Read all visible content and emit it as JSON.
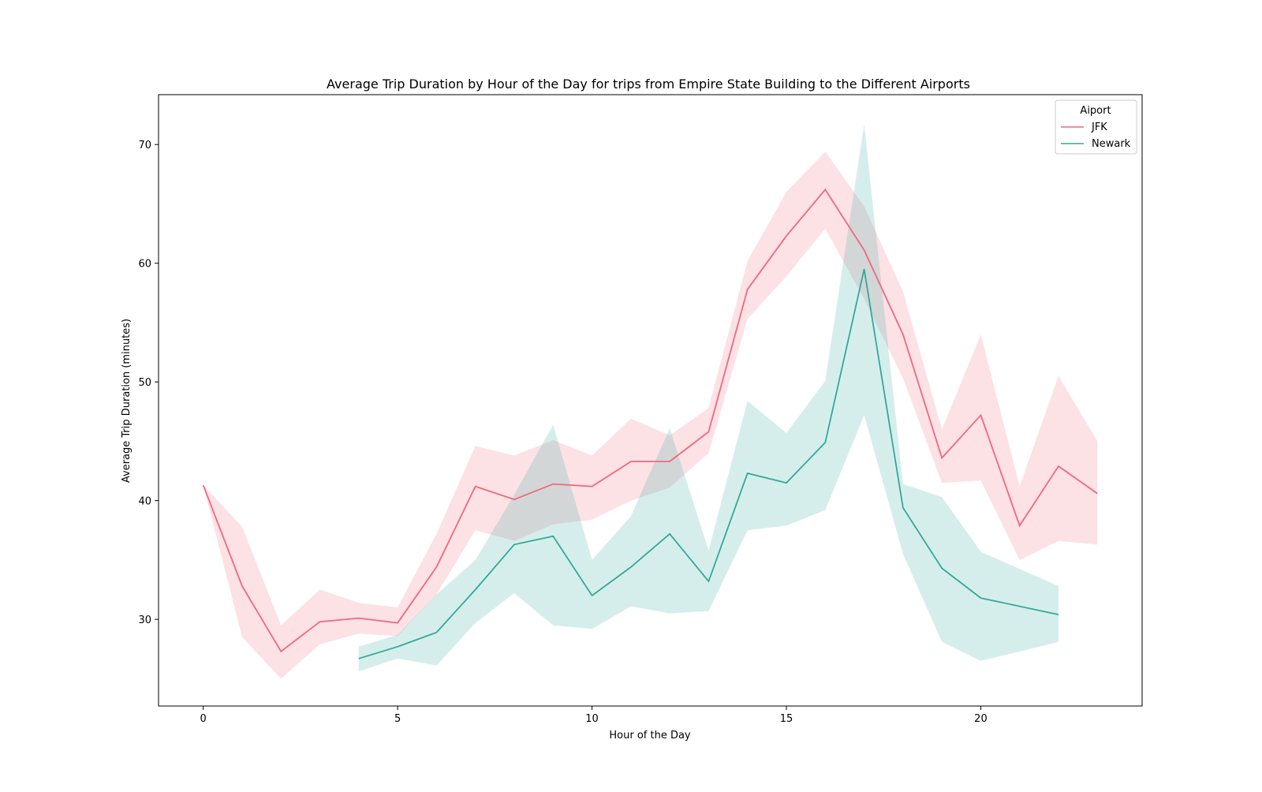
{
  "chart_data": {
    "type": "line",
    "title": "Average Trip Duration by Hour of the Day for trips from Empire State Building to the Different Airports",
    "xlabel": "Hour of the Day",
    "ylabel": "Average Trip Duration (minutes)",
    "xlim": [
      -1.15,
      24.15
    ],
    "ylim": [
      22.7,
      74.2
    ],
    "xticks": [
      0,
      5,
      10,
      15,
      20
    ],
    "yticks": [
      30,
      40,
      50,
      60,
      70
    ],
    "grid": false,
    "legend": {
      "title": "Aiport",
      "placement": "top-right"
    },
    "series": [
      {
        "name": "JFK",
        "color": "#f0687f",
        "x": [
          0,
          1,
          2,
          3,
          4,
          5,
          6,
          7,
          8,
          9,
          10,
          11,
          12,
          13,
          14,
          15,
          16,
          17,
          18,
          19,
          20,
          21,
          22,
          23
        ],
        "y": [
          41.3,
          32.8,
          27.3,
          29.8,
          30.1,
          29.7,
          34.4,
          41.2,
          40.1,
          41.4,
          41.2,
          43.3,
          43.3,
          45.8,
          57.8,
          62.3,
          66.2,
          61.1,
          54.0,
          43.6,
          47.2,
          37.9,
          42.9,
          40.6
        ],
        "ci_low": [
          41.3,
          28.5,
          25.0,
          27.9,
          28.8,
          28.6,
          32.1,
          37.5,
          36.6,
          38.0,
          38.4,
          40.0,
          41.1,
          44.0,
          55.3,
          58.9,
          62.9,
          57.0,
          50.3,
          41.5,
          41.7,
          35.0,
          36.6,
          36.3
        ],
        "ci_high": [
          41.3,
          37.8,
          29.5,
          32.5,
          31.4,
          31.0,
          37.2,
          44.6,
          43.8,
          45.1,
          43.8,
          46.9,
          45.5,
          47.8,
          60.2,
          66.0,
          69.4,
          64.8,
          57.6,
          46.0,
          54.0,
          41.2,
          50.5,
          45.0
        ]
      },
      {
        "name": "Newark",
        "color": "#31a99a",
        "x": [
          4,
          5,
          6,
          7,
          8,
          9,
          10,
          11,
          12,
          13,
          14,
          15,
          16,
          17,
          18,
          19,
          20,
          22
        ],
        "y": [
          26.7,
          27.7,
          28.9,
          32.5,
          36.3,
          37.0,
          32.0,
          34.4,
          37.2,
          33.2,
          42.3,
          41.5,
          44.9,
          59.5,
          39.4,
          34.3,
          31.8,
          30.4
        ],
        "ci_low": [
          25.6,
          26.7,
          26.1,
          29.7,
          32.2,
          29.5,
          29.2,
          31.1,
          30.5,
          30.7,
          37.5,
          37.9,
          39.2,
          47.2,
          35.5,
          28.1,
          26.5,
          28.1
        ],
        "ci_high": [
          27.7,
          28.7,
          32.1,
          35.0,
          40.5,
          46.4,
          35.0,
          38.7,
          46.1,
          35.8,
          48.4,
          45.7,
          50.1,
          71.7,
          41.4,
          40.3,
          35.7,
          32.8
        ]
      }
    ]
  }
}
